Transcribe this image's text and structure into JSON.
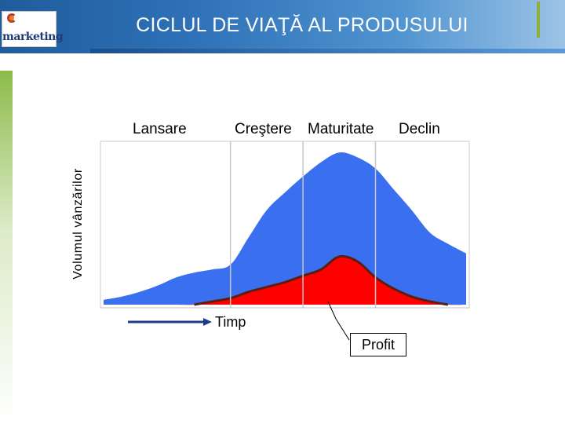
{
  "header": {
    "title": "CICLUL DE VIAŢĂ AL PRODUSULUI",
    "logo_text": "marketing"
  },
  "colors": {
    "header": "#2f72b8",
    "sales_area": "#3a6ff0",
    "profit_area": "#ff0000",
    "profit_line": "#5a1f10",
    "accent_green": "#8dbb4a"
  },
  "chart_data": {
    "type": "area",
    "title": "",
    "xlabel": "Timp",
    "ylabel": "Volumul vânzărilor",
    "stages": [
      "Lansare",
      "Creştere",
      "Maturitate",
      "Declin"
    ],
    "x": [
      0,
      5,
      10,
      15,
      20,
      25,
      30,
      35,
      40,
      45,
      50,
      55,
      60,
      65,
      70,
      75,
      80,
      85,
      90,
      95,
      100
    ],
    "series": [
      {
        "values": [
          3,
          5,
          8,
          12,
          17,
          20,
          22,
          25,
          42,
          59,
          70,
          80,
          89,
          95,
          92,
          85,
          72,
          59,
          45,
          38,
          32
        ]
      },
      {
        "values": [
          0,
          0,
          0,
          0,
          0,
          0,
          2,
          4,
          8,
          11,
          14,
          18,
          22,
          30,
          27,
          17,
          10,
          5,
          2,
          0,
          0
        ]
      }
    ],
    "ylim": [
      0,
      100
    ],
    "grid": false,
    "annotation": "Profit"
  }
}
